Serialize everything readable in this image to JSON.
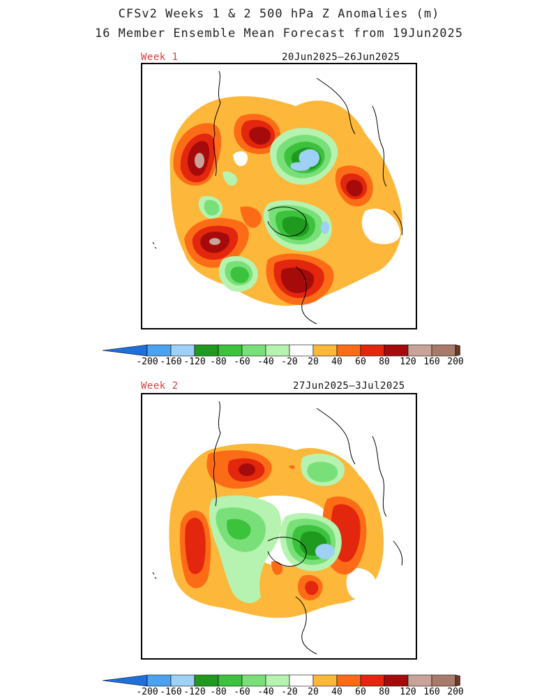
{
  "header": {
    "title": "CFSv2 Weeks 1 & 2 500 hPa Z Anomalies (m)",
    "subtitle": "16 Member Ensemble Mean Forecast from 19Jun2025"
  },
  "panels": [
    {
      "week_label": "Week 1",
      "date_range": "20Jun2025—26Jun2025"
    },
    {
      "week_label": "Week 2",
      "date_range": "27Jun2025—3Jul2025"
    }
  ],
  "colorbar": {
    "labels": [
      "-200",
      "-160",
      "-120",
      "-80",
      "-60",
      "-40",
      "-20",
      "20",
      "40",
      "60",
      "80",
      "120",
      "160",
      "200"
    ],
    "colors": [
      "#1e6fd9",
      "#4aa2f0",
      "#9fd0f5",
      "#1f9a1f",
      "#3cc23c",
      "#79e079",
      "#b6f3b0",
      "#ffffff",
      "#fdb73a",
      "#fc6c16",
      "#e3260e",
      "#a50b0b",
      "#c9a39a",
      "#a87a6a",
      "#6b3b2a"
    ]
  }
}
